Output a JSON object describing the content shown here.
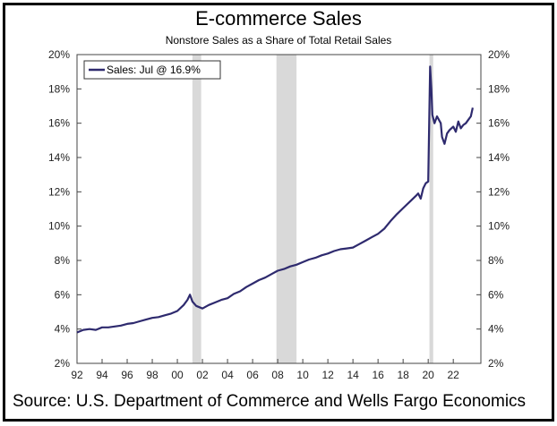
{
  "title": "E-commerce Sales",
  "subtitle": "Nonstore Sales as a Share of Total Retail Sales",
  "source": "Source: U.S. Department of Commerce and Wells Fargo Economics",
  "colors": {
    "line": "#2e2a6e",
    "recession": "#d9d9d9",
    "frame": "#000000"
  },
  "chart_data": {
    "type": "line",
    "title": "E-commerce Sales",
    "subtitle": "Nonstore Sales as a Share of Total Retail Sales",
    "xlabel": "",
    "ylabel": "",
    "xlim": [
      1992,
      2024.2
    ],
    "ylim": [
      2,
      20
    ],
    "x_ticks": [
      "92",
      "94",
      "96",
      "98",
      "00",
      "02",
      "04",
      "06",
      "08",
      "10",
      "12",
      "14",
      "16",
      "18",
      "20",
      "22"
    ],
    "y_ticks": [
      "2%",
      "4%",
      "6%",
      "8%",
      "10%",
      "12%",
      "14%",
      "16%",
      "18%",
      "20%"
    ],
    "grid": false,
    "legend": {
      "position": "top-left",
      "entries": [
        "Sales: Jul @ 16.9%"
      ]
    },
    "recessions": [
      [
        2001.2,
        2001.9
      ],
      [
        2007.9,
        2009.5
      ],
      [
        2020.1,
        2020.4
      ]
    ],
    "series": [
      {
        "name": "Sales: Jul @ 16.9%",
        "x": [
          1992.0,
          1992.5,
          1993.0,
          1993.5,
          1994.0,
          1994.5,
          1995.0,
          1995.5,
          1996.0,
          1996.5,
          1997.0,
          1997.5,
          1998.0,
          1998.5,
          1999.0,
          1999.5,
          2000.0,
          2000.5,
          2000.8,
          2001.0,
          2001.2,
          2001.5,
          2002.0,
          2002.5,
          2003.0,
          2003.5,
          2004.0,
          2004.5,
          2005.0,
          2005.5,
          2006.0,
          2006.5,
          2007.0,
          2007.5,
          2008.0,
          2008.5,
          2009.0,
          2009.5,
          2010.0,
          2010.5,
          2011.0,
          2011.5,
          2012.0,
          2012.5,
          2013.0,
          2013.5,
          2014.0,
          2014.5,
          2015.0,
          2015.5,
          2016.0,
          2016.5,
          2017.0,
          2017.5,
          2018.0,
          2018.5,
          2019.0,
          2019.2,
          2019.4,
          2019.6,
          2019.8,
          2020.0,
          2020.15,
          2020.25,
          2020.33,
          2020.5,
          2020.7,
          2021.0,
          2021.1,
          2021.3,
          2021.5,
          2021.7,
          2022.0,
          2022.2,
          2022.4,
          2022.6,
          2022.8,
          2023.0,
          2023.2,
          2023.4,
          2023.55
        ],
        "values": [
          3.8,
          3.95,
          4.0,
          3.95,
          4.1,
          4.1,
          4.15,
          4.2,
          4.3,
          4.35,
          4.45,
          4.55,
          4.65,
          4.7,
          4.8,
          4.9,
          5.05,
          5.4,
          5.7,
          6.0,
          5.6,
          5.35,
          5.2,
          5.4,
          5.55,
          5.7,
          5.8,
          6.05,
          6.2,
          6.45,
          6.65,
          6.85,
          7.0,
          7.2,
          7.4,
          7.5,
          7.65,
          7.75,
          7.9,
          8.05,
          8.15,
          8.3,
          8.4,
          8.55,
          8.65,
          8.7,
          8.75,
          8.95,
          9.15,
          9.35,
          9.55,
          9.85,
          10.3,
          10.7,
          11.05,
          11.4,
          11.75,
          11.9,
          11.6,
          12.2,
          12.5,
          12.6,
          19.3,
          18.0,
          16.5,
          16.0,
          16.4,
          16.0,
          15.2,
          14.8,
          15.4,
          15.6,
          15.8,
          15.5,
          16.1,
          15.7,
          15.9,
          16.0,
          16.2,
          16.4,
          16.9
        ]
      }
    ]
  }
}
